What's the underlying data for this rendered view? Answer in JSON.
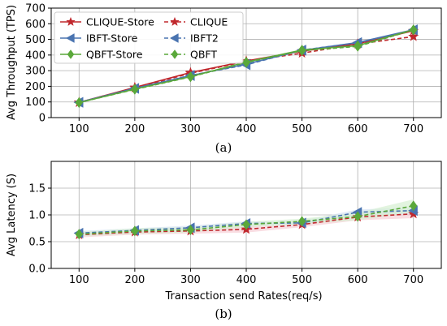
{
  "chart_data": [
    {
      "type": "line",
      "caption": "(a)",
      "ylabel": "Avg Throughput (TPS)",
      "xlabel": "",
      "x": [
        100,
        200,
        300,
        400,
        500,
        600,
        700
      ],
      "xlim": [
        50,
        750
      ],
      "ylim": [
        0,
        700
      ],
      "yticks": [
        0,
        100,
        200,
        300,
        400,
        500,
        600,
        700
      ],
      "grid": true,
      "legend_position": "top-left",
      "legend_columns": 2,
      "series": [
        {
          "name": "CLIQUE-Store",
          "values": [
            97,
            193,
            288,
            362,
            425,
            472,
            555
          ],
          "color": "#c0282d",
          "marker": "star",
          "dashed": false
        },
        {
          "name": "CLIQUE",
          "values": [
            97,
            190,
            283,
            360,
            412,
            470,
            518
          ],
          "color": "#c0282d",
          "marker": "star",
          "dashed": true
        },
        {
          "name": "IBFT-Store",
          "values": [
            98,
            187,
            268,
            342,
            430,
            480,
            562
          ],
          "color": "#4a74b0",
          "marker": "triangle-left",
          "dashed": false
        },
        {
          "name": "IBFT2",
          "values": [
            97,
            186,
            270,
            337,
            432,
            478,
            560
          ],
          "color": "#4a74b0",
          "marker": "triangle-left",
          "dashed": true
        },
        {
          "name": "QBFT-Store",
          "values": [
            96,
            182,
            262,
            355,
            432,
            460,
            562
          ],
          "color": "#5aa83a",
          "marker": "diamond",
          "dashed": false
        },
        {
          "name": "QBFT",
          "values": [
            96,
            180,
            260,
            352,
            428,
            455,
            560
          ],
          "color": "#5aa83a",
          "marker": "diamond",
          "dashed": true
        }
      ]
    },
    {
      "type": "line",
      "caption": "(b)",
      "ylabel": "Avg Latency (S)",
      "xlabel": "Transaction send Rates(req/s)",
      "x": [
        100,
        200,
        300,
        400,
        500,
        600,
        700
      ],
      "xlim": [
        50,
        750
      ],
      "ylim": [
        0,
        2.0
      ],
      "yticks": [
        0.0,
        0.5,
        1.0,
        1.5
      ],
      "ytick_labels": [
        "0.0",
        "0.5",
        "1.0",
        "1.5"
      ],
      "grid": true,
      "series": [
        {
          "name": "CLIQUE",
          "values": [
            0.63,
            0.68,
            0.7,
            0.73,
            0.82,
            0.96,
            1.02
          ],
          "color": "#c0282d",
          "marker": "star",
          "dashed": true,
          "band": [
            0.05,
            0.05,
            0.05,
            0.06,
            0.05,
            0.06,
            0.08
          ],
          "band_color": "#f6cfd6"
        },
        {
          "name": "IBFT2",
          "values": [
            0.66,
            0.71,
            0.76,
            0.84,
            0.85,
            1.05,
            1.08
          ],
          "color": "#4a74b0",
          "marker": "triangle-left",
          "dashed": true,
          "band": [
            0.04,
            0.04,
            0.04,
            0.04,
            0.04,
            0.05,
            0.06
          ],
          "band_color": "#d6e2f3"
        },
        {
          "name": "QBFT",
          "values": [
            0.64,
            0.7,
            0.72,
            0.82,
            0.88,
            0.97,
            1.17
          ],
          "color": "#5aa83a",
          "marker": "diamond",
          "dashed": true,
          "band": [
            0.04,
            0.05,
            0.05,
            0.05,
            0.05,
            0.07,
            0.12
          ],
          "band_color": "#d5efd1"
        }
      ]
    }
  ]
}
